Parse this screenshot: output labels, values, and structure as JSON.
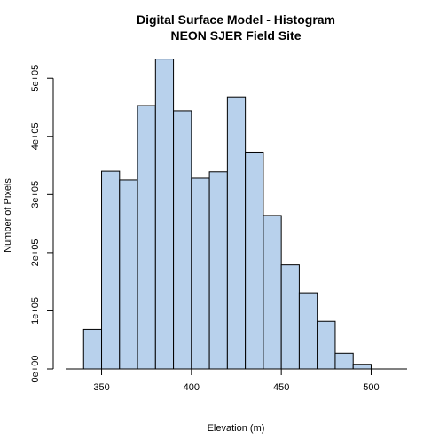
{
  "chart_data": {
    "type": "bar",
    "title": [
      "Digital Surface Model - Histogram",
      "NEON SJER Field Site"
    ],
    "xlabel": "Elevation (m)",
    "ylabel": "Number of Pixels",
    "bins": [
      {
        "x0": 340,
        "x1": 350,
        "count": 68000
      },
      {
        "x0": 350,
        "x1": 360,
        "count": 340000
      },
      {
        "x0": 360,
        "x1": 370,
        "count": 325000
      },
      {
        "x0": 370,
        "x1": 380,
        "count": 453000
      },
      {
        "x0": 380,
        "x1": 390,
        "count": 533000
      },
      {
        "x0": 390,
        "x1": 400,
        "count": 444000
      },
      {
        "x0": 400,
        "x1": 410,
        "count": 328000
      },
      {
        "x0": 410,
        "x1": 420,
        "count": 339000
      },
      {
        "x0": 420,
        "x1": 430,
        "count": 468000
      },
      {
        "x0": 430,
        "x1": 440,
        "count": 373000
      },
      {
        "x0": 440,
        "x1": 450,
        "count": 264000
      },
      {
        "x0": 450,
        "x1": 460,
        "count": 179000
      },
      {
        "x0": 460,
        "x1": 470,
        "count": 131000
      },
      {
        "x0": 470,
        "x1": 480,
        "count": 82000
      },
      {
        "x0": 480,
        "x1": 490,
        "count": 27000
      },
      {
        "x0": 490,
        "x1": 500,
        "count": 8000
      }
    ],
    "xlim": [
      330,
      520
    ],
    "xticks": [
      350,
      400,
      450,
      500
    ],
    "xtick_labels": [
      "350",
      "400",
      "450",
      "500"
    ],
    "ylim": [
      0,
      540000
    ],
    "yticks": [
      0,
      100000,
      200000,
      300000,
      400000,
      500000
    ],
    "ytick_labels": [
      "0e+00",
      "1e+05",
      "2e+05",
      "3e+05",
      "4e+05",
      "5e+05"
    ],
    "bar_color": "#b8d1ec",
    "grid": false,
    "legend": "none"
  }
}
